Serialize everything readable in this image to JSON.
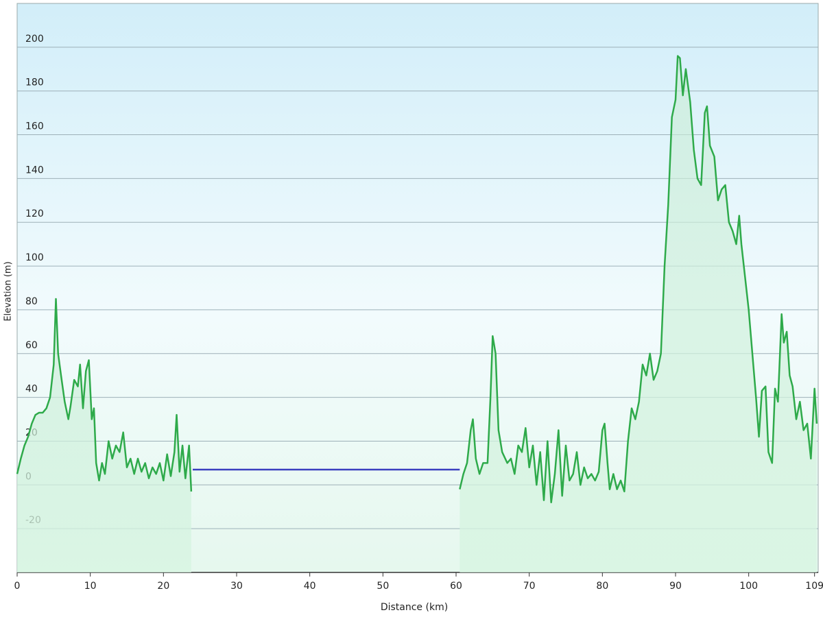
{
  "chart_data": {
    "type": "line",
    "xlabel": "Distance  (km)",
    "ylabel": "Elevation (m)",
    "x": [
      0,
      0.5,
      1,
      1.5,
      2,
      2.5,
      3,
      3.5,
      4,
      4.5,
      5,
      5.3,
      5.6,
      6,
      6.5,
      7,
      7.3,
      7.8,
      8.3,
      8.6,
      9,
      9.4,
      9.8,
      10.2,
      10.5,
      10.8,
      11.2,
      11.6,
      12,
      12.5,
      13,
      13.5,
      14,
      14.5,
      15,
      15.5,
      16,
      16.5,
      17,
      17.5,
      18,
      18.5,
      19,
      19.5,
      20,
      20.5,
      21,
      21.5,
      21.8,
      22.2,
      22.6,
      23,
      23.5,
      23.8,
      24,
      40,
      60.5,
      61,
      61.5,
      62,
      62.3,
      62.7,
      63.2,
      63.7,
      64.3,
      64.7,
      65,
      65.4,
      65.8,
      66.3,
      67,
      67.5,
      68,
      68.5,
      69,
      69.5,
      70,
      70.5,
      71,
      71.5,
      72,
      72.5,
      73,
      73.5,
      74,
      74.5,
      75,
      75.5,
      76,
      76.5,
      77,
      77.5,
      78,
      78.5,
      79,
      79.5,
      80,
      80.3,
      80.7,
      81,
      81.5,
      82,
      82.5,
      83,
      83.5,
      84,
      84.5,
      85,
      85.5,
      86,
      86.5,
      87,
      87.5,
      88,
      88.5,
      89,
      89.5,
      90,
      90.3,
      90.6,
      91,
      91.4,
      92,
      92.5,
      93,
      93.5,
      94,
      94.3,
      94.7,
      95.3,
      95.8,
      96.3,
      96.8,
      97.3,
      97.8,
      98.3,
      98.7,
      99,
      99.5,
      100,
      100.5,
      101,
      101.4,
      101.8,
      102.3,
      102.7,
      103.2,
      103.6,
      104,
      104.5,
      104.8,
      105.2,
      105.6,
      106,
      106.5,
      107,
      107.5,
      108,
      108.5,
      109,
      109.3
    ],
    "series": [
      {
        "color": "#2eaa4a",
        "fill": true,
        "values": [
          5,
          12,
          18,
          22,
          28,
          32,
          33,
          33,
          35,
          40,
          55,
          85,
          60,
          50,
          38,
          30,
          36,
          48,
          45,
          55,
          35,
          52,
          57,
          30,
          35,
          10,
          2,
          10,
          5,
          20,
          12,
          18,
          15,
          24,
          8,
          12,
          5,
          12,
          6,
          10,
          3,
          8,
          5,
          10,
          2,
          14,
          4,
          15,
          32,
          6,
          18,
          3,
          18,
          -3,
          null,
          null,
          -2,
          5,
          10,
          25,
          30,
          12,
          5,
          10,
          10,
          40,
          68,
          60,
          25,
          15,
          10,
          12,
          5,
          18,
          15,
          26,
          8,
          18,
          0,
          15,
          -7,
          20,
          -8,
          5,
          25,
          -5,
          18,
          2,
          5,
          15,
          0,
          8,
          3,
          5,
          2,
          6,
          25,
          28,
          10,
          -2,
          5,
          -2,
          2,
          -3,
          20,
          35,
          30,
          38,
          55,
          50,
          60,
          48,
          52,
          60,
          100,
          128,
          168,
          176,
          196,
          195,
          178,
          190,
          175,
          153,
          140,
          137,
          170,
          173,
          155,
          150,
          130,
          135,
          137,
          120,
          116,
          110,
          123,
          110,
          95,
          80,
          60,
          40,
          22,
          43,
          45,
          15,
          10,
          44,
          38,
          78,
          65,
          70,
          50,
          45,
          30,
          38,
          25,
          28,
          12,
          44,
          28
        ]
      },
      {
        "color": "#3a3fbf",
        "values": [
          null,
          null,
          null,
          null,
          null,
          null,
          null,
          null,
          null,
          null,
          null,
          null,
          null,
          null,
          null,
          null,
          null,
          null,
          null,
          null,
          null,
          null,
          null,
          null,
          null,
          null,
          null,
          null,
          null,
          null,
          null,
          null,
          null,
          null,
          null,
          null,
          null,
          null,
          null,
          null,
          null,
          null,
          null,
          null,
          null,
          null,
          null,
          null,
          null,
          null,
          null,
          null,
          null,
          null,
          7,
          7,
          7,
          null,
          null,
          null,
          null,
          null,
          null,
          null,
          null,
          null,
          null,
          null,
          null,
          null,
          null,
          null,
          null,
          null,
          null,
          null,
          null,
          null,
          null,
          null,
          null,
          null,
          null,
          null,
          null,
          null,
          null,
          null,
          null,
          null,
          null,
          null,
          null,
          null,
          null,
          null,
          null,
          null,
          null,
          null,
          null,
          null,
          null,
          null,
          null,
          null,
          null,
          null,
          null,
          null,
          null,
          null,
          null,
          null,
          null,
          null,
          null,
          null,
          null,
          null,
          null,
          null,
          null,
          null,
          null,
          null,
          null,
          null,
          null,
          null,
          null,
          null,
          null,
          null,
          null,
          null,
          null,
          null,
          null,
          null,
          null,
          null,
          null,
          null,
          null,
          null,
          null,
          null,
          null,
          null,
          null,
          null,
          null,
          null,
          null,
          null,
          null,
          null,
          null,
          null,
          null
        ]
      }
    ],
    "xlim": [
      0,
      109.5
    ],
    "xticks": [
      0,
      10,
      20,
      30,
      40,
      50,
      60,
      70,
      80,
      90,
      100,
      109
    ],
    "ylim": [
      -40,
      220
    ],
    "yticks": [
      -20,
      0,
      20,
      40,
      60,
      80,
      100,
      120,
      140,
      160,
      180,
      200
    ],
    "grid": true
  }
}
